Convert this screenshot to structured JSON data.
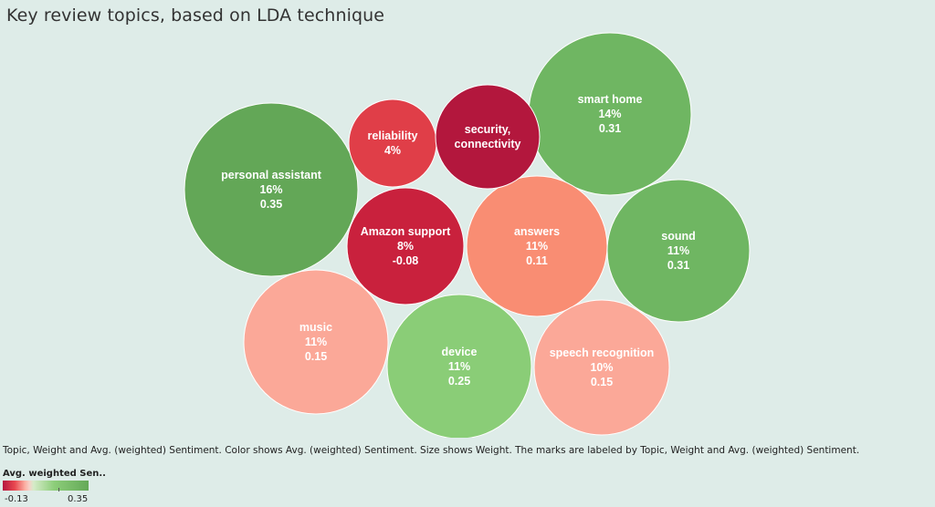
{
  "chart_data": {
    "type": "bubble",
    "title": "Key review topics, based on LDA technique",
    "caption": "Topic, Weight and Avg. (weighted) Sentiment.  Color shows  Avg. (weighted) Sentiment.  Size shows Weight.  The marks are labeled by Topic, Weight and Avg. (weighted) Sentiment.",
    "legend": {
      "title": "Avg. weighted Sen..",
      "min_label": "-0.13",
      "max_label": "0.35",
      "min": -0.13,
      "max": 0.35
    },
    "bubbles": [
      {
        "topic_lines": [
          "personal assistant"
        ],
        "weight_label": "16%",
        "sentiment_label": "0.35",
        "weight": 16,
        "sentiment": 0.35,
        "color": "#63a757"
      },
      {
        "topic_lines": [
          "smart home"
        ],
        "weight_label": "14%",
        "sentiment_label": "0.31",
        "weight": 14,
        "sentiment": 0.31,
        "color": "#6fb662"
      },
      {
        "topic_lines": [
          "answers"
        ],
        "weight_label": "11%",
        "sentiment_label": "0.11",
        "weight": 11,
        "sentiment": 0.11,
        "color": "#f98d73"
      },
      {
        "topic_lines": [
          "sound"
        ],
        "weight_label": "11%",
        "sentiment_label": "0.31",
        "weight": 11,
        "sentiment": 0.31,
        "color": "#6fb662"
      },
      {
        "topic_lines": [
          "music"
        ],
        "weight_label": "11%",
        "sentiment_label": "0.15",
        "weight": 11,
        "sentiment": 0.15,
        "color": "#fba898"
      },
      {
        "topic_lines": [
          "device"
        ],
        "weight_label": "11%",
        "sentiment_label": "0.25",
        "weight": 11,
        "sentiment": 0.25,
        "color": "#8acd77"
      },
      {
        "topic_lines": [
          "speech recognition"
        ],
        "weight_label": "10%",
        "sentiment_label": "0.15",
        "weight": 10,
        "sentiment": 0.15,
        "color": "#fba898"
      },
      {
        "topic_lines": [
          "Amazon support"
        ],
        "weight_label": "8%",
        "sentiment_label": "-0.08",
        "weight": 8,
        "sentiment": -0.08,
        "color": "#c9213d"
      },
      {
        "topic_lines": [
          "reliability"
        ],
        "weight_label": "4%",
        "sentiment_label": "",
        "weight": 4,
        "sentiment": null,
        "color": "#e03e48"
      },
      {
        "topic_lines": [
          "security,",
          "connectivity"
        ],
        "weight_label": "",
        "sentiment_label": "",
        "weight": null,
        "sentiment": null,
        "color": "#b3173d"
      }
    ]
  }
}
